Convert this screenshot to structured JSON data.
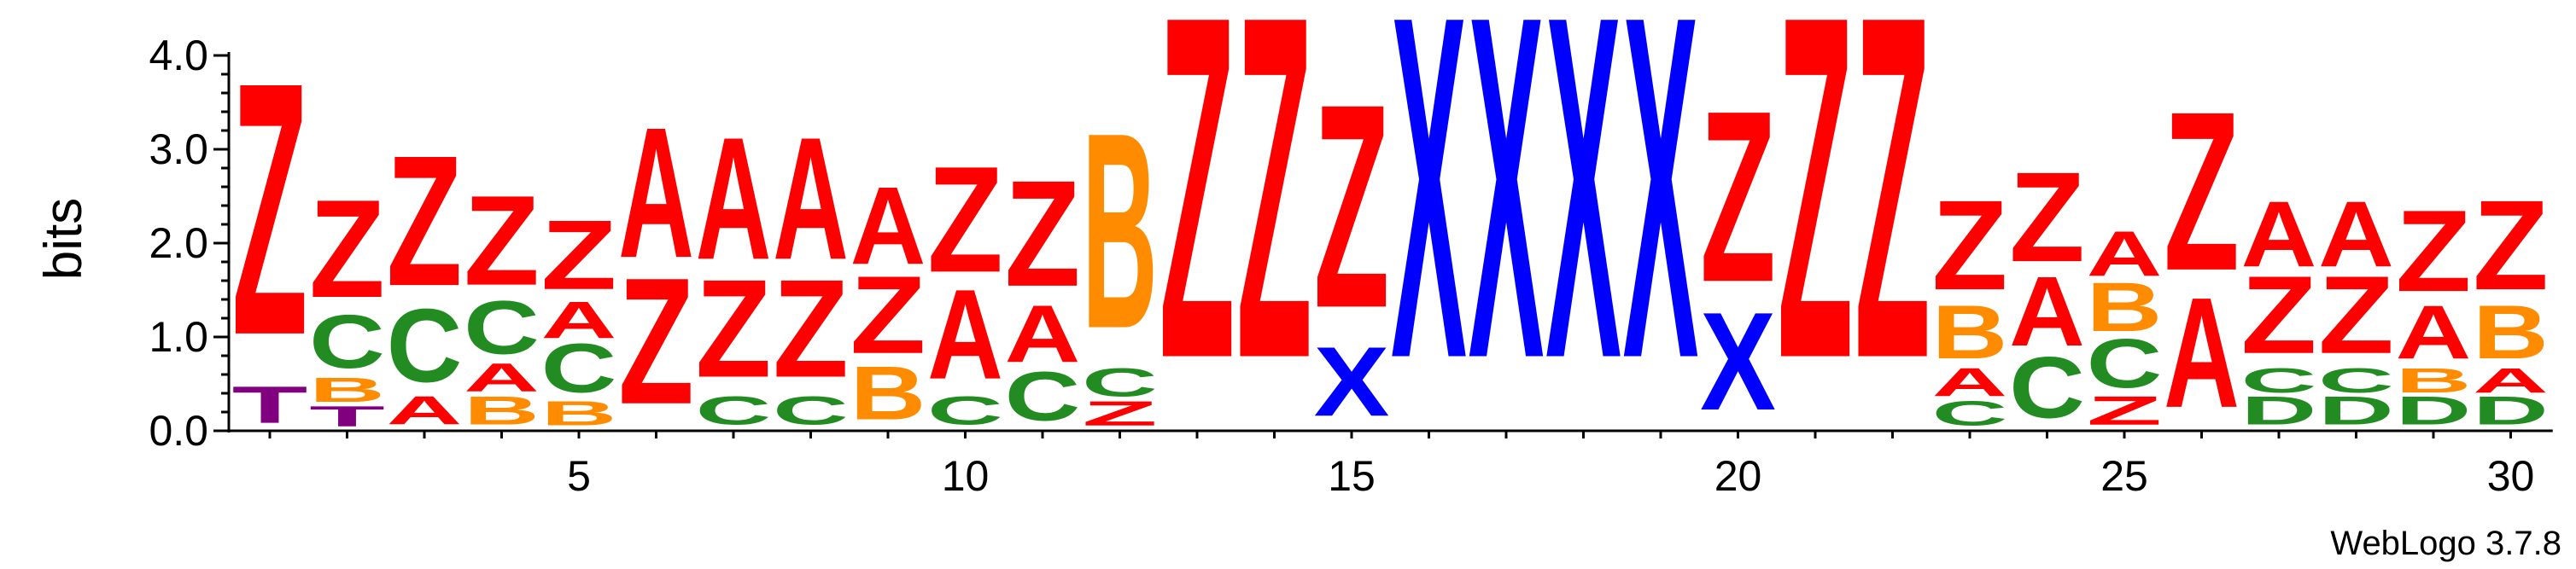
{
  "chart_data": {
    "type": "sequence-logo",
    "ylabel": "bits",
    "ylim": [
      0,
      4.0
    ],
    "yticks": [
      "0.0",
      "1.0",
      "2.0",
      "3.0",
      "4.0"
    ],
    "xticks": [
      5,
      10,
      15,
      20,
      25,
      30
    ],
    "colors": {
      "Z": "#ff0000",
      "X": "#0000ff",
      "A": "#ff0000",
      "B": "#ff8c00",
      "C": "#228b22",
      "D": "#228b22",
      "T": "#800080"
    },
    "positions": [
      {
        "pos": 1,
        "stack": [
          {
            "l": "T",
            "h": 0.45
          },
          {
            "l": "Z",
            "h": 3.1
          }
        ]
      },
      {
        "pos": 2,
        "stack": [
          {
            "l": "T",
            "h": 0.25
          },
          {
            "l": "B",
            "h": 0.3
          },
          {
            "l": "C",
            "h": 0.65
          },
          {
            "l": "Z",
            "h": 1.2
          }
        ]
      },
      {
        "pos": 3,
        "stack": [
          {
            "l": "A",
            "h": 0.35
          },
          {
            "l": "C",
            "h": 0.9
          },
          {
            "l": "Z",
            "h": 1.6
          }
        ]
      },
      {
        "pos": 4,
        "stack": [
          {
            "l": "B",
            "h": 0.35
          },
          {
            "l": "A",
            "h": 0.35
          },
          {
            "l": "C",
            "h": 0.65
          },
          {
            "l": "Z",
            "h": 1.1
          }
        ]
      },
      {
        "pos": 5,
        "stack": [
          {
            "l": "B",
            "h": 0.3
          },
          {
            "l": "C",
            "h": 0.6
          },
          {
            "l": "A",
            "h": 0.45
          },
          {
            "l": "Z",
            "h": 0.85
          }
        ]
      },
      {
        "pos": 6,
        "stack": [
          {
            "l": "Z",
            "h": 1.55
          },
          {
            "l": "A",
            "h": 1.6
          }
        ]
      },
      {
        "pos": 7,
        "stack": [
          {
            "l": "C",
            "h": 0.35
          },
          {
            "l": "Z",
            "h": 1.2
          },
          {
            "l": "A",
            "h": 1.5
          }
        ]
      },
      {
        "pos": 8,
        "stack": [
          {
            "l": "C",
            "h": 0.35
          },
          {
            "l": "Z",
            "h": 1.2
          },
          {
            "l": "A",
            "h": 1.5
          }
        ]
      },
      {
        "pos": 9,
        "stack": [
          {
            "l": "B",
            "h": 0.65
          },
          {
            "l": "Z",
            "h": 0.95
          },
          {
            "l": "A",
            "h": 0.95
          }
        ]
      },
      {
        "pos": 10,
        "stack": [
          {
            "l": "C",
            "h": 0.35
          },
          {
            "l": "A",
            "h": 1.1
          },
          {
            "l": "Z",
            "h": 1.3
          }
        ]
      },
      {
        "pos": 11,
        "stack": [
          {
            "l": "C",
            "h": 0.6
          },
          {
            "l": "A",
            "h": 0.7
          },
          {
            "l": "Z",
            "h": 1.3
          }
        ]
      },
      {
        "pos": 12,
        "stack": [
          {
            "l": "Z",
            "h": 0.3
          },
          {
            "l": "C",
            "h": 0.35
          },
          {
            "l": "B",
            "h": 2.4
          }
        ]
      },
      {
        "pos": 13,
        "stack": [
          {
            "l": "Z",
            "h": 4.2
          }
        ]
      },
      {
        "pos": 14,
        "stack": [
          {
            "l": "Z",
            "h": 4.2
          }
        ]
      },
      {
        "pos": 15,
        "stack": [
          {
            "l": "X",
            "h": 0.85
          },
          {
            "l": "Z",
            "h": 2.5
          }
        ]
      },
      {
        "pos": 16,
        "stack": [
          {
            "l": "X",
            "h": 4.2
          }
        ]
      },
      {
        "pos": 17,
        "stack": [
          {
            "l": "X",
            "h": 4.2
          }
        ]
      },
      {
        "pos": 18,
        "stack": [
          {
            "l": "X",
            "h": 4.2
          }
        ]
      },
      {
        "pos": 19,
        "stack": [
          {
            "l": "X",
            "h": 4.2
          }
        ]
      },
      {
        "pos": 20,
        "stack": [
          {
            "l": "X",
            "h": 1.2
          },
          {
            "l": "Z",
            "h": 2.1
          }
        ]
      },
      {
        "pos": 21,
        "stack": [
          {
            "l": "Z",
            "h": 4.2
          }
        ]
      },
      {
        "pos": 22,
        "stack": [
          {
            "l": "Z",
            "h": 4.2
          }
        ]
      },
      {
        "pos": 23,
        "stack": [
          {
            "l": "C",
            "h": 0.3
          },
          {
            "l": "A",
            "h": 0.35
          },
          {
            "l": "B",
            "h": 0.65
          },
          {
            "l": "Z",
            "h": 1.1
          }
        ]
      },
      {
        "pos": 24,
        "stack": [
          {
            "l": "C",
            "h": 0.75
          },
          {
            "l": "A",
            "h": 0.85
          },
          {
            "l": "Z",
            "h": 1.1
          }
        ]
      },
      {
        "pos": 25,
        "stack": [
          {
            "l": "Z",
            "h": 0.35
          },
          {
            "l": "C",
            "h": 0.6
          },
          {
            "l": "B",
            "h": 0.6
          },
          {
            "l": "A",
            "h": 0.55
          }
        ]
      },
      {
        "pos": 26,
        "stack": [
          {
            "l": "A",
            "h": 1.35
          },
          {
            "l": "Z",
            "h": 1.95
          }
        ]
      },
      {
        "pos": 27,
        "stack": [
          {
            "l": "D",
            "h": 0.35
          },
          {
            "l": "C",
            "h": 0.3
          },
          {
            "l": "Z",
            "h": 0.95
          },
          {
            "l": "A",
            "h": 0.8
          }
        ]
      },
      {
        "pos": 28,
        "stack": [
          {
            "l": "D",
            "h": 0.35
          },
          {
            "l": "C",
            "h": 0.3
          },
          {
            "l": "Z",
            "h": 0.95
          },
          {
            "l": "A",
            "h": 0.8
          }
        ]
      },
      {
        "pos": 29,
        "stack": [
          {
            "l": "D",
            "h": 0.35
          },
          {
            "l": "B",
            "h": 0.3
          },
          {
            "l": "A",
            "h": 0.65
          },
          {
            "l": "Z",
            "h": 1.0
          }
        ]
      },
      {
        "pos": 30,
        "stack": [
          {
            "l": "D",
            "h": 0.35
          },
          {
            "l": "A",
            "h": 0.3
          },
          {
            "l": "B",
            "h": 0.65
          },
          {
            "l": "Z",
            "h": 1.1
          }
        ]
      }
    ]
  },
  "credit": "WebLogo 3.7.8"
}
